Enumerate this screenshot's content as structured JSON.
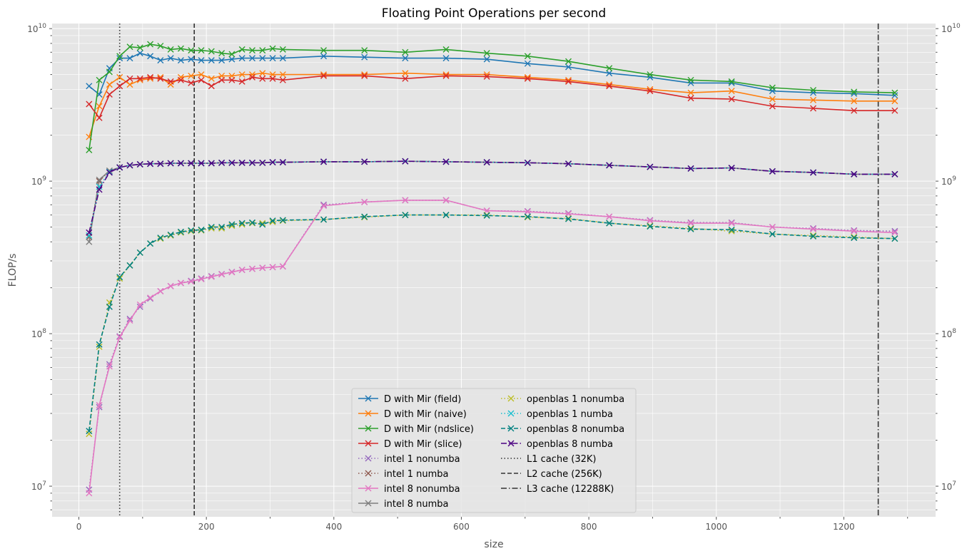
{
  "chart_data": {
    "type": "line",
    "title": "Floating Point Operations per second",
    "xlabel": "size",
    "ylabel": "FLOP/s",
    "xlim": [
      -42,
      1344
    ],
    "ylim": [
      6300000.0,
      10800000000.0
    ],
    "yscale": "log",
    "grid": true,
    "style": "ggplot",
    "legend_position": "lower center",
    "x_ticks": [
      0,
      200,
      400,
      600,
      800,
      1000,
      1200
    ],
    "y_ticks": [
      {
        "value": 10000000.0,
        "base": "10",
        "exp": "7"
      },
      {
        "value": 100000000.0,
        "base": "10",
        "exp": "8"
      },
      {
        "value": 1000000000.0,
        "base": "10",
        "exp": "9"
      },
      {
        "value": 10000000000.0,
        "base": "10",
        "exp": "10"
      }
    ],
    "series": [
      {
        "name": "D with Mir (field)",
        "color": "#1f77b4",
        "linestyle": "solid",
        "marker": "x",
        "x": [
          16,
          32,
          48,
          64,
          80,
          96,
          112,
          128,
          144,
          160,
          176,
          192,
          208,
          224,
          240,
          256,
          272,
          288,
          304,
          320,
          384,
          448,
          512,
          576,
          640,
          704,
          768,
          832,
          896,
          960,
          1024,
          1088,
          1152,
          1216,
          1280
        ],
        "y": [
          4200000000.0,
          3700000000.0,
          5500000000.0,
          6400000000.0,
          6400000000.0,
          6900000000.0,
          6600000000.0,
          6200000000.0,
          6400000000.0,
          6200000000.0,
          6300000000.0,
          6200000000.0,
          6200000000.0,
          6200000000.0,
          6300000000.0,
          6400000000.0,
          6400000000.0,
          6400000000.0,
          6400000000.0,
          6400000000.0,
          6600000000.0,
          6500000000.0,
          6400000000.0,
          6400000000.0,
          6300000000.0,
          5900000000.0,
          5600000000.0,
          5100000000.0,
          4800000000.0,
          4400000000.0,
          4400000000.0,
          3900000000.0,
          3800000000.0,
          3750000000.0,
          3650000000.0
        ]
      },
      {
        "name": "D with Mir (naive)",
        "color": "#ff7f0e",
        "linestyle": "solid",
        "marker": "x",
        "x": [
          16,
          32,
          48,
          64,
          80,
          96,
          112,
          128,
          144,
          160,
          176,
          192,
          208,
          224,
          240,
          256,
          272,
          288,
          304,
          320,
          384,
          448,
          512,
          576,
          640,
          704,
          768,
          832,
          896,
          960,
          1024,
          1088,
          1152,
          1216,
          1280
        ],
        "y": [
          1950000000.0,
          3100000000.0,
          4300000000.0,
          4800000000.0,
          4300000000.0,
          4600000000.0,
          4700000000.0,
          4800000000.0,
          4300000000.0,
          4800000000.0,
          4900000000.0,
          5000000000.0,
          4700000000.0,
          4900000000.0,
          4900000000.0,
          5000000000.0,
          5000000000.0,
          5100000000.0,
          5000000000.0,
          5000000000.0,
          5000000000.0,
          5000000000.0,
          5100000000.0,
          5000000000.0,
          5000000000.0,
          4800000000.0,
          4600000000.0,
          4300000000.0,
          4000000000.0,
          3800000000.0,
          3900000000.0,
          3450000000.0,
          3400000000.0,
          3350000000.0,
          3350000000.0
        ]
      },
      {
        "name": "D with Mir (ndslice)",
        "color": "#2ca02c",
        "linestyle": "solid",
        "marker": "x",
        "x": [
          16,
          32,
          48,
          64,
          80,
          96,
          112,
          128,
          144,
          160,
          176,
          192,
          208,
          224,
          240,
          256,
          272,
          288,
          304,
          320,
          384,
          448,
          512,
          576,
          640,
          704,
          768,
          832,
          896,
          960,
          1024,
          1088,
          1152,
          1216,
          1280
        ],
        "y": [
          1600000000.0,
          4600000000.0,
          5200000000.0,
          6600000000.0,
          7600000000.0,
          7500000000.0,
          7900000000.0,
          7700000000.0,
          7300000000.0,
          7400000000.0,
          7200000000.0,
          7200000000.0,
          7100000000.0,
          6900000000.0,
          6800000000.0,
          7300000000.0,
          7200000000.0,
          7200000000.0,
          7400000000.0,
          7300000000.0,
          7200000000.0,
          7200000000.0,
          7000000000.0,
          7300000000.0,
          6900000000.0,
          6600000000.0,
          6100000000.0,
          5500000000.0,
          5000000000.0,
          4600000000.0,
          4500000000.0,
          4100000000.0,
          3950000000.0,
          3850000000.0,
          3800000000.0
        ]
      },
      {
        "name": "D with Mir (slice)",
        "color": "#d62728",
        "linestyle": "solid",
        "marker": "x",
        "x": [
          16,
          32,
          48,
          64,
          80,
          96,
          112,
          128,
          144,
          160,
          176,
          192,
          208,
          224,
          240,
          256,
          272,
          288,
          304,
          320,
          384,
          448,
          512,
          576,
          640,
          704,
          768,
          832,
          896,
          960,
          1024,
          1088,
          1152,
          1216,
          1280
        ],
        "y": [
          3200000000.0,
          2600000000.0,
          3700000000.0,
          4200000000.0,
          4700000000.0,
          4700000000.0,
          4800000000.0,
          4700000000.0,
          4500000000.0,
          4600000000.0,
          4400000000.0,
          4600000000.0,
          4200000000.0,
          4600000000.0,
          4600000000.0,
          4500000000.0,
          4800000000.0,
          4700000000.0,
          4700000000.0,
          4600000000.0,
          4900000000.0,
          4900000000.0,
          4700000000.0,
          4900000000.0,
          4850000000.0,
          4700000000.0,
          4500000000.0,
          4200000000.0,
          3900000000.0,
          3500000000.0,
          3450000000.0,
          3100000000.0,
          3000000000.0,
          2900000000.0,
          2900000000.0
        ]
      },
      {
        "name": "intel 1 nonumba",
        "color": "#9467bd",
        "linestyle": "dotted",
        "marker": "x",
        "x": [
          16,
          32,
          48,
          64,
          80,
          96,
          112,
          128,
          144,
          160,
          176,
          192,
          208,
          224,
          240,
          256,
          272,
          288,
          304,
          320,
          384,
          448,
          512,
          576,
          640,
          704,
          768,
          832,
          896,
          960,
          1024,
          1088,
          1152,
          1216,
          1280
        ],
        "y": [
          9500000.0,
          33000000.0,
          63000000.0,
          96000000.0,
          125000000.0,
          150000000.0,
          170000000.0,
          190000000.0,
          205000000.0,
          215000000.0,
          222000000.0,
          230000000.0,
          238000000.0,
          246000000.0,
          254000000.0,
          262000000.0,
          266000000.0,
          270000000.0,
          273000000.0,
          276000000.0,
          700000000.0,
          730000000.0,
          750000000.0,
          750000000.0,
          640000000.0,
          635000000.0,
          615000000.0,
          585000000.0,
          555000000.0,
          535000000.0,
          535000000.0,
          500000000.0,
          490000000.0,
          475000000.0,
          470000000.0
        ]
      },
      {
        "name": "intel 1 numba",
        "color": "#8c564b",
        "linestyle": "dotted",
        "marker": "x",
        "x": [
          16,
          32,
          48,
          64,
          80,
          96,
          112,
          128,
          144,
          160,
          176,
          192,
          208,
          224,
          240,
          256,
          272,
          288,
          304,
          320,
          384,
          448,
          512,
          576,
          640,
          704,
          768,
          832,
          896,
          960,
          1024,
          1088,
          1152,
          1216,
          1280
        ],
        "y": [
          430000000.0,
          1000000000.0,
          1170000000.0,
          1230000000.0,
          1270000000.0,
          1290000000.0,
          1300000000.0,
          1300000000.0,
          1310000000.0,
          1310000000.0,
          1310000000.0,
          1310000000.0,
          1310000000.0,
          1320000000.0,
          1320000000.0,
          1320000000.0,
          1320000000.0,
          1320000000.0,
          1330000000.0,
          1330000000.0,
          1340000000.0,
          1340000000.0,
          1350000000.0,
          1340000000.0,
          1330000000.0,
          1320000000.0,
          1300000000.0,
          1270000000.0,
          1240000000.0,
          1210000000.0,
          1220000000.0,
          1160000000.0,
          1140000000.0,
          1110000000.0,
          1110000000.0
        ]
      },
      {
        "name": "intel 8 nonumba",
        "color": "#e377c2",
        "linestyle": "solid",
        "marker": "x",
        "x": [
          16,
          32,
          48,
          64,
          80,
          96,
          112,
          128,
          144,
          160,
          176,
          192,
          208,
          224,
          240,
          256,
          272,
          288,
          304,
          320,
          384,
          448,
          512,
          576,
          640,
          704,
          768,
          832,
          896,
          960,
          1024,
          1088,
          1152,
          1216,
          1280
        ],
        "y": [
          9000000.0,
          34000000.0,
          61000000.0,
          95000000.0,
          122000000.0,
          155000000.0,
          172000000.0,
          190000000.0,
          205000000.0,
          215000000.0,
          220000000.0,
          228000000.0,
          236000000.0,
          245000000.0,
          253000000.0,
          262000000.0,
          266000000.0,
          270000000.0,
          273000000.0,
          276000000.0,
          690000000.0,
          730000000.0,
          750000000.0,
          750000000.0,
          640000000.0,
          630000000.0,
          610000000.0,
          585000000.0,
          550000000.0,
          530000000.0,
          530000000.0,
          500000000.0,
          485000000.0,
          470000000.0,
          460000000.0
        ]
      },
      {
        "name": "intel 8 numba",
        "color": "#7f7f7f",
        "linestyle": "solid",
        "marker": "x",
        "x": [
          16,
          32,
          48,
          64,
          80,
          96,
          112,
          128,
          144,
          160,
          176,
          192,
          208,
          224,
          240,
          256,
          272,
          288,
          304,
          320,
          384,
          448,
          512,
          576,
          640,
          704,
          768,
          832,
          896,
          960,
          1024,
          1088,
          1152,
          1216,
          1280
        ],
        "y": [
          400000000.0,
          1020000000.0,
          1170000000.0,
          1230000000.0,
          1270000000.0,
          1290000000.0,
          1300000000.0,
          1300000000.0,
          1310000000.0,
          1310000000.0,
          1310000000.0,
          1310000000.0,
          1310000000.0,
          1320000000.0,
          1320000000.0,
          1320000000.0,
          1320000000.0,
          1320000000.0,
          1330000000.0,
          1330000000.0,
          1340000000.0,
          1340000000.0,
          1350000000.0,
          1340000000.0,
          1330000000.0,
          1320000000.0,
          1300000000.0,
          1270000000.0,
          1240000000.0,
          1210000000.0,
          1220000000.0,
          1160000000.0,
          1140000000.0,
          1110000000.0,
          1110000000.0
        ]
      },
      {
        "name": "openblas 1 nonumba",
        "color": "#bcbd22",
        "linestyle": "dotted",
        "marker": "x",
        "x": [
          16,
          32,
          48,
          64,
          80,
          96,
          112,
          128,
          144,
          160,
          176,
          192,
          208,
          224,
          240,
          256,
          272,
          288,
          304,
          320,
          384,
          448,
          512,
          576,
          640,
          704,
          768,
          832,
          896,
          960,
          1024,
          1088,
          1152,
          1216,
          1280
        ],
        "y": [
          22000000.0,
          82000000.0,
          160000000.0,
          230000000.0,
          280000000.0,
          340000000.0,
          390000000.0,
          420000000.0,
          440000000.0,
          460000000.0,
          470000000.0,
          475000000.0,
          490000000.0,
          490000000.0,
          510000000.0,
          520000000.0,
          530000000.0,
          530000000.0,
          540000000.0,
          550000000.0,
          560000000.0,
          580000000.0,
          600000000.0,
          600000000.0,
          600000000.0,
          580000000.0,
          570000000.0,
          530000000.0,
          510000000.0,
          490000000.0,
          470000000.0,
          450000000.0,
          440000000.0,
          430000000.0,
          420000000.0
        ]
      },
      {
        "name": "openblas 1 numba",
        "color": "#17becf",
        "linestyle": "dotted",
        "marker": "x",
        "x": [
          16,
          32,
          48,
          64,
          80,
          96,
          112,
          128,
          144,
          160,
          176,
          192,
          208,
          224,
          240,
          256,
          272,
          288,
          304,
          320,
          384,
          448,
          512,
          576,
          640,
          704,
          768,
          832,
          896,
          960,
          1024,
          1088,
          1152,
          1216,
          1280
        ],
        "y": [
          440000000.0,
          920000000.0,
          1150000000.0,
          1230000000.0,
          1270000000.0,
          1290000000.0,
          1300000000.0,
          1300000000.0,
          1310000000.0,
          1310000000.0,
          1310000000.0,
          1310000000.0,
          1310000000.0,
          1320000000.0,
          1320000000.0,
          1320000000.0,
          1320000000.0,
          1320000000.0,
          1330000000.0,
          1330000000.0,
          1340000000.0,
          1340000000.0,
          1350000000.0,
          1340000000.0,
          1330000000.0,
          1320000000.0,
          1300000000.0,
          1270000000.0,
          1240000000.0,
          1210000000.0,
          1220000000.0,
          1160000000.0,
          1140000000.0,
          1110000000.0,
          1110000000.0
        ]
      },
      {
        "name": "openblas 8 nonumba",
        "color": "#008080",
        "linestyle": "dashed",
        "marker": "x",
        "x": [
          16,
          32,
          48,
          64,
          80,
          96,
          112,
          128,
          144,
          160,
          176,
          192,
          208,
          224,
          240,
          256,
          272,
          288,
          304,
          320,
          384,
          448,
          512,
          576,
          640,
          704,
          768,
          832,
          896,
          960,
          1024,
          1088,
          1152,
          1216,
          1280
        ],
        "y": [
          23000000.0,
          85000000.0,
          150000000.0,
          235000000.0,
          280000000.0,
          340000000.0,
          390000000.0,
          425000000.0,
          445000000.0,
          465000000.0,
          475000000.0,
          480000000.0,
          500000000.0,
          500000000.0,
          520000000.0,
          530000000.0,
          535000000.0,
          520000000.0,
          550000000.0,
          555000000.0,
          560000000.0,
          585000000.0,
          600000000.0,
          600000000.0,
          595000000.0,
          585000000.0,
          565000000.0,
          530000000.0,
          505000000.0,
          485000000.0,
          480000000.0,
          450000000.0,
          435000000.0,
          425000000.0,
          420000000.0
        ]
      },
      {
        "name": "openblas 8 numba",
        "color": "#4b0082",
        "linestyle": "dashdot",
        "marker": "x",
        "x": [
          16,
          32,
          48,
          64,
          80,
          96,
          112,
          128,
          144,
          160,
          176,
          192,
          208,
          224,
          240,
          256,
          272,
          288,
          304,
          320,
          384,
          448,
          512,
          576,
          640,
          704,
          768,
          832,
          896,
          960,
          1024,
          1088,
          1152,
          1216,
          1280
        ],
        "y": [
          460000000.0,
          880000000.0,
          1140000000.0,
          1230000000.0,
          1270000000.0,
          1290000000.0,
          1300000000.0,
          1300000000.0,
          1310000000.0,
          1310000000.0,
          1310000000.0,
          1310000000.0,
          1310000000.0,
          1320000000.0,
          1320000000.0,
          1320000000.0,
          1320000000.0,
          1320000000.0,
          1330000000.0,
          1330000000.0,
          1340000000.0,
          1340000000.0,
          1350000000.0,
          1340000000.0,
          1330000000.0,
          1320000000.0,
          1300000000.0,
          1270000000.0,
          1240000000.0,
          1210000000.0,
          1220000000.0,
          1160000000.0,
          1140000000.0,
          1110000000.0,
          1110000000.0
        ]
      }
    ],
    "vlines": [
      {
        "name": "L1 cache (32K)",
        "x": 64,
        "linestyle": "dotted",
        "color": "#333333"
      },
      {
        "name": "L2 cache (256K)",
        "x": 181,
        "linestyle": "dashed",
        "color": "#333333"
      },
      {
        "name": "L3 cache (12288K)",
        "x": 1254,
        "linestyle": "dashdot",
        "color": "#333333"
      }
    ]
  }
}
